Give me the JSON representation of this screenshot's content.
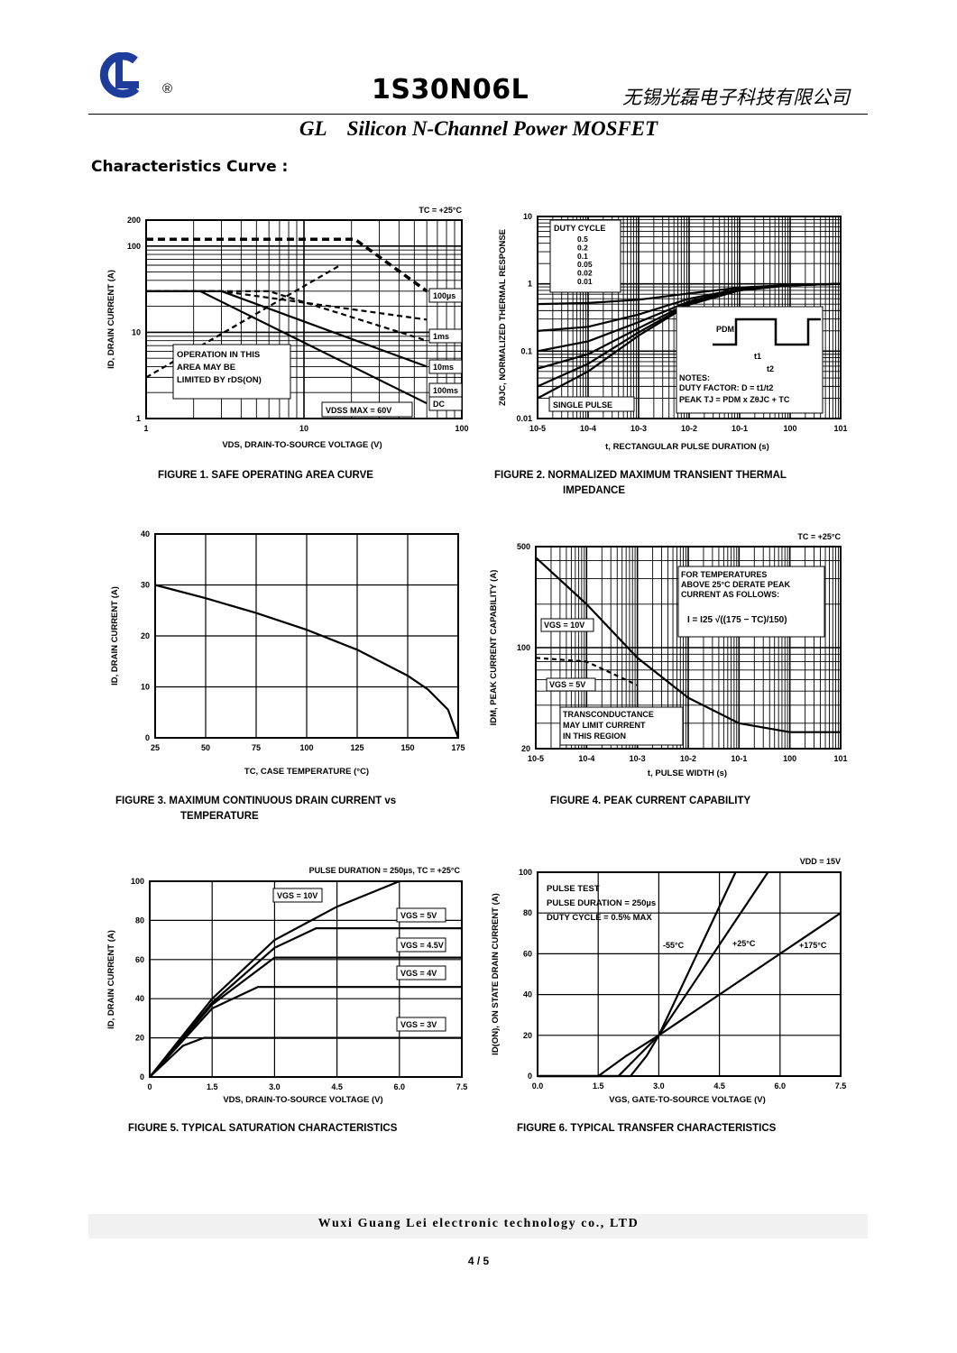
{
  "header": {
    "registered": "®",
    "part_number": "1S30N06L",
    "company_cn": "无锡光磊电子科技有限公司",
    "subtitle": "GL    Silicon N-Channel Power MOSFET",
    "section_title": "Characteristics Curve :"
  },
  "footer": {
    "company": "Wuxi Guang Lei electronic technology co., LTD",
    "page": "4 / 5"
  },
  "colors": {
    "logo": "#1e3c9c",
    "ink": "#000000",
    "footer_bar": "#f1f1f1"
  },
  "chart_data": [
    {
      "id": "fig1",
      "type": "line",
      "title": "FIGURE 1. SAFE OPERATING AREA CURVE",
      "xlabel": "VDS, DRAIN-TO-SOURCE VOLTAGE (V)",
      "ylabel": "ID, DRAIN CURRENT (A)",
      "xscale": "log",
      "yscale": "log",
      "xlim": [
        1,
        100
      ],
      "ylim": [
        1,
        200
      ],
      "x_ticks": [
        "1",
        "10",
        "100"
      ],
      "y_ticks": [
        "1",
        "10",
        "100",
        "200"
      ],
      "condition": "TC = +25°C",
      "annotations": [
        "OPERATION IN THIS",
        "AREA MAY BE",
        "LIMITED BY rDS(ON)",
        "VDSS MAX = 60V"
      ],
      "series": [
        {
          "name": "100µs",
          "x": [
            1,
            21,
            60
          ],
          "y": [
            120,
            120,
            30
          ]
        },
        {
          "name": "1ms",
          "x": [
            1,
            3,
            60
          ],
          "y": [
            30,
            30,
            14
          ]
        },
        {
          "name": "10ms",
          "x": [
            1,
            6,
            60
          ],
          "y": [
            30,
            30,
            8
          ]
        },
        {
          "name": "100ms",
          "x": [
            1,
            3,
            60
          ],
          "y": [
            30,
            30,
            4
          ]
        },
        {
          "name": "DC",
          "x": [
            1,
            2.2,
            60
          ],
          "y": [
            30,
            30,
            1.5
          ]
        },
        {
          "name": "",
          "x": [
            1,
            17
          ],
          "y": [
            3,
            60
          ]
        }
      ]
    },
    {
      "id": "fig2",
      "type": "line",
      "title": "FIGURE 2. NORMALIZED MAXIMUM TRANSIENT THERMAL IMPEDANCE",
      "xlabel": "t, RECTANGULAR PULSE DURATION (s)",
      "ylabel": "ZθJC, NORMALIZED THERMAL RESPONSE",
      "xscale": "log",
      "yscale": "log",
      "xlim": [
        1e-05,
        10
      ],
      "ylim": [
        0.01,
        10
      ],
      "x_ticks": [
        "10-5",
        "10-4",
        "10-3",
        "10-2",
        "10-1",
        "100",
        "101"
      ],
      "y_ticks": [
        "0.01",
        "0.1",
        "1",
        "10"
      ],
      "legend_title": "DUTY CYCLE",
      "legend": [
        "0.5",
        "0.2",
        "0.1",
        "0.05",
        "0.02",
        "0.01"
      ],
      "annotations": [
        "SINGLE PULSE",
        "PDM",
        "t1",
        "t2",
        "NOTES:",
        "DUTY FACTOR: D = t1/t2",
        "PEAK TJ = PDM x ZθJC + TC"
      ],
      "series": [
        {
          "name": "0.5",
          "x": [
            1e-05,
            0.0001,
            0.001,
            0.01,
            0.1,
            1,
            10
          ],
          "y": [
            0.5,
            0.52,
            0.58,
            0.72,
            0.88,
            0.96,
            1
          ]
        },
        {
          "name": "0.2",
          "x": [
            1e-05,
            0.0001,
            0.001,
            0.01,
            0.1,
            1,
            10
          ],
          "y": [
            0.2,
            0.23,
            0.35,
            0.6,
            0.84,
            0.95,
            1
          ]
        },
        {
          "name": "0.1",
          "x": [
            1e-05,
            0.0001,
            0.001,
            0.01,
            0.1,
            1,
            10
          ],
          "y": [
            0.1,
            0.14,
            0.27,
            0.55,
            0.82,
            0.95,
            1
          ]
        },
        {
          "name": "0.05",
          "x": [
            1e-05,
            0.0001,
            0.001,
            0.01,
            0.1,
            1,
            10
          ],
          "y": [
            0.055,
            0.09,
            0.22,
            0.52,
            0.81,
            0.95,
            1
          ]
        },
        {
          "name": "0.02",
          "x": [
            1e-05,
            0.0001,
            0.001,
            0.01,
            0.1,
            1,
            10
          ],
          "y": [
            0.03,
            0.065,
            0.19,
            0.5,
            0.8,
            0.95,
            1
          ]
        },
        {
          "name": "0.01",
          "x": [
            1e-05,
            0.0001,
            0.001,
            0.01,
            0.1,
            1,
            10
          ],
          "y": [
            0.02,
            0.05,
            0.17,
            0.49,
            0.8,
            0.95,
            1
          ]
        }
      ]
    },
    {
      "id": "fig3",
      "type": "line",
      "title": "FIGURE 3. MAXIMUM CONTINUOUS DRAIN CURRENT vs TEMPERATURE",
      "xlabel": "TC, CASE TEMPERATURE (°C)",
      "ylabel": "ID, DRAIN CURRENT (A)",
      "xlim": [
        25,
        175
      ],
      "ylim": [
        0,
        40
      ],
      "x_ticks": [
        "25",
        "50",
        "75",
        "100",
        "125",
        "150",
        "175"
      ],
      "y_ticks": [
        "0",
        "10",
        "20",
        "30",
        "40"
      ],
      "series": [
        {
          "name": "",
          "x": [
            25,
            50,
            75,
            100,
            125,
            150,
            160,
            170,
            175
          ],
          "y": [
            30,
            27.4,
            24.5,
            21.2,
            17.3,
            12.2,
            9.5,
            5.5,
            0
          ]
        }
      ]
    },
    {
      "id": "fig4",
      "type": "line",
      "title": "FIGURE 4. PEAK CURRENT CAPABILITY",
      "xlabel": "t, PULSE WIDTH (s)",
      "ylabel": "IDM, PEAK CURRENT CAPABILITY (A)",
      "xscale": "log",
      "yscale": "log",
      "xlim": [
        1e-05,
        10
      ],
      "ylim": [
        20,
        500
      ],
      "x_ticks": [
        "10-5",
        "10-4",
        "10-3",
        "10-2",
        "10-1",
        "100",
        "101"
      ],
      "y_ticks": [
        "20",
        "100",
        "500"
      ],
      "condition": "TC = +25°C",
      "annotations": [
        "FOR TEMPERATURES",
        "ABOVE 25°C DERATE PEAK",
        "CURRENT AS FOLLOWS:",
        "I = I25 √((175 − TC)/150)",
        "VGS = 10V",
        "VGS = 5V",
        "TRANSCONDUCTANCE",
        "MAY LIMIT CURRENT",
        "IN THIS REGION"
      ],
      "series": [
        {
          "name": "VGS = 10V",
          "x": [
            1e-05,
            0.0001,
            0.001,
            0.01,
            0.1,
            1,
            10
          ],
          "y": [
            420,
            200,
            85,
            45,
            30,
            26,
            26
          ]
        },
        {
          "name": "VGS = 5V",
          "x": [
            1e-05,
            0.0001,
            0.001
          ],
          "y": [
            85,
            80,
            55
          ]
        }
      ]
    },
    {
      "id": "fig5",
      "type": "line",
      "title": "FIGURE 5. TYPICAL SATURATION CHARACTERISTICS",
      "xlabel": "VDS, DRAIN-TO-SOURCE VOLTAGE (V)",
      "ylabel": "ID, DRAIN CURRENT (A)",
      "xlim": [
        0,
        7.5
      ],
      "ylim": [
        0,
        100
      ],
      "x_ticks": [
        "0",
        "1.5",
        "3.0",
        "4.5",
        "6.0",
        "7.5"
      ],
      "y_ticks": [
        "0",
        "20",
        "40",
        "60",
        "80",
        "100"
      ],
      "condition": "PULSE DURATION = 250µs, TC = +25°C",
      "series": [
        {
          "name": "VGS = 10V",
          "x": [
            0,
            1.5,
            3,
            4.5,
            6
          ],
          "y": [
            0,
            40,
            70,
            87,
            100
          ]
        },
        {
          "name": "VGS = 5V",
          "x": [
            0,
            1.5,
            3,
            4,
            7.5
          ],
          "y": [
            0,
            38,
            66,
            76,
            76
          ]
        },
        {
          "name": "VGS = 4.5V",
          "x": [
            0,
            1.5,
            3,
            7.5
          ],
          "y": [
            0,
            37,
            61,
            61
          ]
        },
        {
          "name": "VGS = 4V",
          "x": [
            0,
            1.5,
            2.6,
            7.5
          ],
          "y": [
            0,
            35,
            46,
            46
          ]
        },
        {
          "name": "VGS = 3V",
          "x": [
            0,
            0.8,
            1.3,
            7.5
          ],
          "y": [
            0,
            16,
            20,
            20
          ]
        }
      ]
    },
    {
      "id": "fig6",
      "type": "line",
      "title": "FIGURE 6. TYPICAL TRANSFER CHARACTERISTICS",
      "xlabel": "VGS, GATE-TO-SOURCE VOLTAGE (V)",
      "ylabel": "ID(ON), ON STATE DRAIN CURRENT (A)",
      "xlim": [
        0,
        7.5
      ],
      "ylim": [
        0,
        100
      ],
      "x_ticks": [
        "0.0",
        "1.5",
        "3.0",
        "4.5",
        "6.0",
        "7.5"
      ],
      "y_ticks": [
        "0",
        "20",
        "40",
        "60",
        "80",
        "100"
      ],
      "condition": "VDD = 15V",
      "annotations": [
        "PULSE TEST",
        "PULSE DURATION = 250µs",
        "DUTY CYCLE = 0.5% MAX"
      ],
      "series": [
        {
          "name": "-55°C",
          "x": [
            0,
            2.3,
            2.7,
            3,
            4.9
          ],
          "y": [
            0,
            0,
            10,
            20,
            100
          ]
        },
        {
          "name": "+25°C",
          "x": [
            0,
            2,
            2.5,
            3,
            5.7
          ],
          "y": [
            0,
            0,
            10,
            20,
            100
          ]
        },
        {
          "name": "+175°C",
          "x": [
            0,
            1.5,
            2.2,
            3,
            7.5
          ],
          "y": [
            0,
            0,
            10,
            20,
            80
          ]
        }
      ]
    }
  ]
}
